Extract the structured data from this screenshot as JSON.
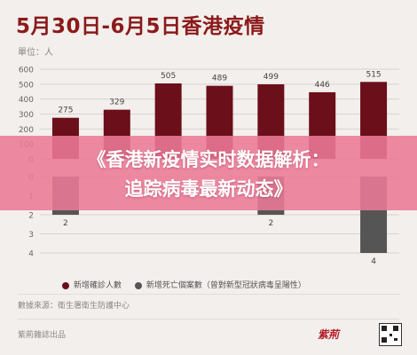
{
  "title": "5月30日-6月5日香港疫情",
  "unit_label": "單位：人",
  "banner": {
    "line1": "《香港新疫情实时数据解析：",
    "line2": "追踪病毒最新动态》"
  },
  "legend": {
    "confirmed": "新增確診人數",
    "deaths": "新增死亡個案數（曾對新型冠狀病毒呈陽性）"
  },
  "source": "數據來源：衛生署衛生防護中心",
  "publisher": "紫荊雜誌出品",
  "logo_text": "紫荊",
  "chart_data": {
    "type": "bar",
    "title": "5月30日-6月5日香港疫情",
    "ylabel": "單位：人",
    "series": [
      {
        "name": "新增確診人數",
        "values": [
          275,
          329,
          505,
          489,
          499,
          446,
          515
        ],
        "color": "#6b0f1a"
      },
      {
        "name": "新增死亡個案數（曾對新型冠狀病毒呈陽性）",
        "values": [
          2,
          null,
          null,
          null,
          2,
          null,
          4
        ],
        "color": "#555555"
      }
    ],
    "upper_ylim": [
      0,
      600
    ],
    "upper_yticks": [
      "0",
      "100",
      "200",
      "300",
      "400",
      "500",
      "600"
    ],
    "lower_ylim": [
      0,
      4
    ],
    "lower_yticks": [
      "0",
      "1",
      "2",
      "3",
      "4"
    ],
    "grid": true,
    "legend_position": "bottom"
  }
}
